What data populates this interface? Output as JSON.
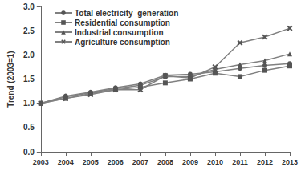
{
  "chart_data": {
    "type": "line",
    "y_label": "Trend (2003=1)",
    "categories": [
      "2003",
      "2004",
      "2005",
      "2006",
      "2007",
      "2008",
      "2009",
      "2010",
      "2011",
      "2012",
      "2013"
    ],
    "series": [
      {
        "name": "Total electricity  generation",
        "color": "#808080",
        "marker": "circle",
        "values": [
          1.0,
          1.15,
          1.23,
          1.32,
          1.4,
          1.58,
          1.6,
          1.65,
          1.72,
          1.78,
          1.82
        ]
      },
      {
        "name": "Residential consumption",
        "color": "#808080",
        "marker": "square",
        "values": [
          1.0,
          1.1,
          1.2,
          1.28,
          1.33,
          1.42,
          1.5,
          1.62,
          1.55,
          1.68,
          1.77
        ]
      },
      {
        "name": "Industrial consumption",
        "color": "#808080",
        "marker": "triangle",
        "values": [
          1.0,
          1.13,
          1.22,
          1.3,
          1.37,
          1.55,
          1.55,
          1.7,
          1.8,
          1.88,
          2.02
        ]
      },
      {
        "name": "Agriculture consumption",
        "color": "#808080",
        "marker": "x",
        "values": [
          1.0,
          1.1,
          1.18,
          1.28,
          1.28,
          1.57,
          1.52,
          1.75,
          2.25,
          2.37,
          2.55
        ]
      }
    ],
    "ylim": [
      0,
      3
    ],
    "yticks": [
      {
        "value": 0,
        "label": "0.0"
      },
      0.5,
      {
        "value": 1,
        "label": "1.0"
      },
      1.5,
      {
        "value": 2,
        "label": "2.0"
      },
      2.5,
      {
        "value": 3,
        "label": "3.0"
      }
    ],
    "grid": false,
    "legend": "upper left"
  }
}
